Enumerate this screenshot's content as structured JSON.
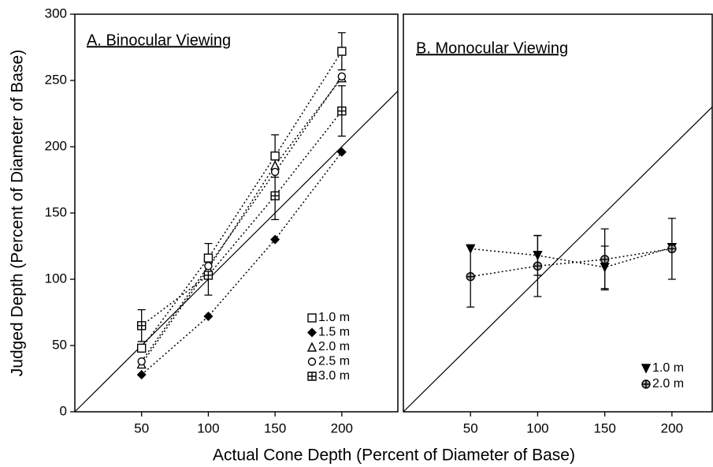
{
  "chart_data": [
    {
      "type": "line",
      "title": "A. Binocular Viewing",
      "ylabel": "Judged Depth (Percent of Diameter of Base)",
      "xlabel": "Actual Cone Depth (Percent of Diameter of Base)",
      "x": [
        50,
        100,
        150,
        200
      ],
      "xlim": [
        0,
        242
      ],
      "ylim": [
        0,
        300
      ],
      "xticks": [
        50,
        100,
        150,
        200
      ],
      "yticks": [
        0,
        50,
        100,
        150,
        200,
        250,
        300
      ],
      "identity_line": true,
      "legend": "lower right",
      "series": [
        {
          "name": "1.0 m",
          "color": "#000000",
          "marker": "square",
          "values": [
            48,
            116,
            193,
            272
          ],
          "errors": [
            null,
            11,
            16,
            14
          ]
        },
        {
          "name": "1.5 m",
          "color": "#000000",
          "marker": "diamond",
          "values": [
            28,
            72,
            130,
            196
          ]
        },
        {
          "name": "2.0 m",
          "color": "#000000",
          "marker": "triangle",
          "values": [
            36,
            108,
            186,
            252
          ]
        },
        {
          "name": "2.5 m",
          "color": "#000000",
          "marker": "circle",
          "values": [
            38,
            110,
            181,
            253
          ]
        },
        {
          "name": "3.0 m",
          "color": "#000000",
          "marker": "square-cross",
          "values": [
            65,
            103,
            163,
            227
          ],
          "errors": [
            12,
            15,
            18,
            19
          ]
        }
      ]
    },
    {
      "type": "line",
      "title": "B. Monocular Viewing",
      "x": [
        50,
        100,
        150,
        200
      ],
      "xlim": [
        0,
        230
      ],
      "ylim": [
        0,
        300
      ],
      "xticks": [
        50,
        100,
        150,
        200
      ],
      "identity_line": true,
      "legend": "lower right",
      "series": [
        {
          "name": "1.0 m",
          "color": "#000000",
          "marker": "triangle-down",
          "values": [
            123,
            118,
            109,
            124
          ],
          "errors": [
            null,
            15,
            16,
            null
          ]
        },
        {
          "name": "2.0 m",
          "color": "#000000",
          "marker": "circle-cross",
          "values": [
            102,
            110,
            115,
            123
          ],
          "errors": [
            23,
            23,
            23,
            23
          ]
        }
      ]
    }
  ]
}
